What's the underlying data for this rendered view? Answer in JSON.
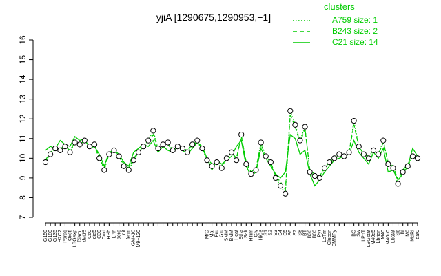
{
  "chart_data": {
    "type": "line",
    "title": "yjiA [1290675,1290953,−1]",
    "legend_title": "clusters",
    "legend": "top-right",
    "categories": [
      "G150",
      "G180",
      "G135",
      "H2O2",
      "Paraq",
      "Oxctl",
      "LBGexp",
      "Diami",
      "dat15",
      "C60",
      "dia5",
      "C30",
      "Cold",
      "HPh",
      "LPh",
      "aero",
      "nit",
      "ferm",
      "GM+10",
      "M9+120",
      null,
      null,
      null,
      null,
      null,
      null,
      null,
      null,
      null,
      null,
      null,
      null,
      null,
      "M/G",
      "Mal",
      "Fru",
      "Glu",
      "SMM",
      "BMM",
      "Heat",
      "Etha",
      "Salt",
      "HTim",
      "Gly",
      "HiOs",
      "S1",
      "S2",
      "S3",
      "S4",
      "S5",
      "S6",
      "S7",
      "S8",
      "BT",
      "B36",
      "B60",
      "Pyr",
      "LoTm",
      "Glucon",
      "SMMPy",
      null,
      null,
      null,
      "BC",
      "Sw",
      "LPhT",
      "LBGstat",
      "M40d5",
      "Lbrian",
      "M40",
      "M40d0",
      "Lbstat",
      "Sb",
      "BI",
      "M0",
      "MdRI",
      "dat0"
    ],
    "series": [
      {
        "name": "A759 size: 1",
        "color": "#00cc00",
        "dash": "dotted",
        "marker": true,
        "values": [
          9.8,
          10.2,
          10.5,
          10.4,
          10.6,
          10.3,
          10.8,
          10.7,
          10.9,
          10.6,
          10.7,
          10.0,
          9.4,
          10.2,
          10.4,
          10.1,
          9.6,
          9.4,
          9.9,
          10.3,
          10.6,
          10.9,
          11.4,
          10.5,
          10.7,
          10.8,
          10.4,
          10.6,
          10.5,
          10.3,
          10.7,
          10.9,
          10.5,
          9.9,
          9.6,
          9.8,
          9.5,
          10.0,
          10.3,
          9.9,
          11.2,
          9.7,
          9.2,
          9.4,
          10.8,
          10.1,
          9.8,
          9.0,
          8.6,
          8.2,
          12.4,
          11.7,
          10.9,
          11.6,
          9.3,
          9.1,
          9.0,
          9.5,
          9.8,
          10.0,
          10.2,
          10.1,
          10.3,
          11.9,
          10.6,
          10.2,
          10.0,
          10.4,
          10.2,
          10.9,
          9.7,
          9.5,
          8.7,
          9.3,
          9.6,
          10.1,
          10.0
        ]
      },
      {
        "name": "B243 size: 2",
        "color": "#00cc00",
        "dash": "dashed",
        "marker": false,
        "values": [
          9.9,
          10.3,
          10.5,
          10.5,
          10.6,
          10.4,
          10.8,
          10.7,
          10.9,
          10.6,
          10.6,
          10.0,
          9.5,
          10.2,
          10.4,
          10.1,
          9.7,
          9.5,
          10.0,
          10.3,
          10.6,
          10.8,
          11.2,
          10.5,
          10.7,
          10.7,
          10.4,
          10.6,
          10.5,
          10.4,
          10.7,
          10.8,
          10.5,
          10.0,
          9.7,
          9.8,
          9.6,
          10.0,
          10.3,
          10.0,
          11.1,
          9.8,
          9.3,
          9.5,
          10.7,
          10.1,
          9.8,
          9.1,
          8.8,
          8.4,
          12.2,
          11.6,
          10.8,
          11.5,
          9.4,
          9.2,
          9.1,
          9.5,
          9.8,
          10.0,
          10.2,
          10.1,
          10.3,
          11.7,
          10.6,
          10.2,
          10.1,
          10.4,
          10.2,
          10.8,
          9.8,
          9.6,
          8.9,
          9.4,
          9.7,
          10.1,
          10.0
        ]
      },
      {
        "name": "C21 size: 14",
        "color": "#00cc00",
        "dash": "solid",
        "marker": false,
        "values": [
          10.4,
          10.6,
          10.5,
          10.9,
          10.7,
          10.6,
          11.1,
          10.9,
          11.0,
          10.5,
          10.6,
          10.2,
          9.6,
          10.3,
          10.4,
          10.2,
          9.8,
          9.6,
          10.3,
          10.5,
          10.7,
          10.6,
          10.9,
          10.3,
          10.6,
          10.4,
          10.3,
          10.6,
          10.4,
          10.2,
          10.5,
          10.8,
          10.6,
          10.0,
          9.4,
          9.9,
          9.7,
          9.9,
          10.1,
          10.6,
          10.9,
          9.6,
          9.1,
          9.3,
          10.5,
          10.0,
          9.6,
          9.2,
          9.0,
          9.3,
          11.2,
          11.0,
          10.2,
          10.4,
          9.2,
          8.6,
          8.9,
          9.3,
          9.6,
          9.9,
          10.0,
          10.1,
          10.2,
          10.9,
          10.3,
          10.0,
          9.7,
          10.3,
          10.0,
          10.5,
          9.3,
          9.4,
          8.9,
          9.2,
          9.6,
          10.5,
          10.1
        ]
      }
    ],
    "ylim": [
      7,
      16
    ],
    "yticks": [
      7,
      8,
      9,
      10,
      11,
      12,
      13,
      14,
      15,
      16
    ]
  }
}
